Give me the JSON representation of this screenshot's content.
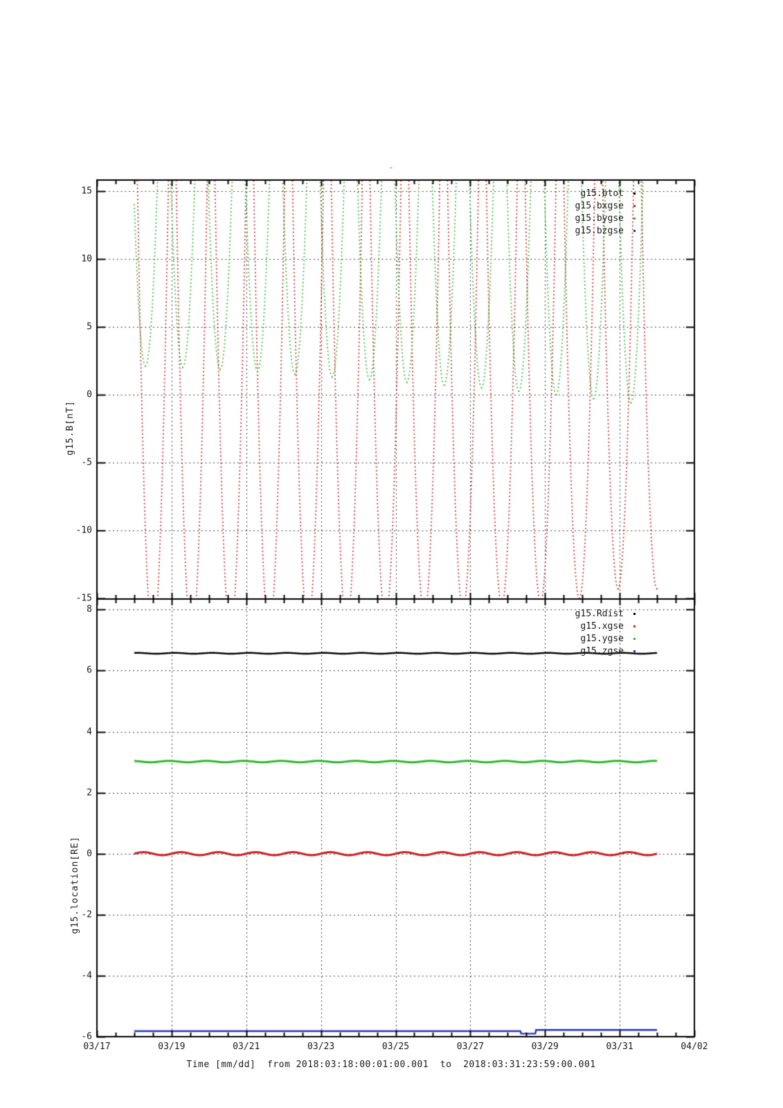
{
  "figure": {
    "title": "-",
    "bg_color": "#ffffff",
    "axis_color": "#000000",
    "text_color": "#1a1a1a"
  },
  "x_axis": {
    "title": "Time [mm/dd]  from 2018:03:18:00:01:00.001  to  2018:03:31:23:59:00.001",
    "tick_labels": [
      "03/17",
      "03/19",
      "03/21",
      "03/23",
      "03/25",
      "03/27",
      "03/29",
      "03/31",
      "04/02"
    ],
    "range_days_from_0317": [
      0,
      16
    ],
    "major_tick_every_days": 2,
    "minor_tick_every_days": 0.5,
    "grid": "dotted"
  },
  "panels": [
    {
      "id": "field",
      "ylabel": "g15.B[nT]",
      "ytick_labels": [
        "15",
        "10",
        "5",
        "0",
        "-5",
        "-10",
        "-15"
      ],
      "yticks": [
        15,
        10,
        5,
        0,
        -5,
        -10,
        -15
      ],
      "yrange": [
        -15.05,
        15.8
      ],
      "legend": [
        {
          "label": "g15.btot",
          "color": "#000000"
        },
        {
          "label": "g15.bxgse",
          "color": "#cc2222"
        },
        {
          "label": "g15.bygse",
          "color": "#2db82d"
        },
        {
          "label": "g15.bzgse",
          "color": "#2233bb"
        }
      ]
    },
    {
      "id": "location",
      "ylabel": "g15.location[RE]",
      "ytick_labels": [
        "8",
        "6",
        "4",
        "2",
        "0",
        "-2",
        "-4",
        "-6"
      ],
      "yticks": [
        8,
        6,
        4,
        2,
        0,
        -2,
        -4,
        -6
      ],
      "yrange": [
        -6,
        8.35
      ],
      "legend": [
        {
          "label": "g15.Rdist",
          "color": "#000000"
        },
        {
          "label": "g15.xgse",
          "color": "#cc2222"
        },
        {
          "label": "g15.ygse",
          "color": "#2db82d"
        },
        {
          "label": "g15.zgse",
          "color": "#2233bb"
        }
      ]
    }
  ],
  "chart_data": [
    {
      "type": "scatter",
      "title": "GOES-15 magnetic field in GSE, dotted daily V-shaped traces",
      "ylabel": "g15.B[nT]",
      "ylim": [
        -15.05,
        15.8
      ],
      "xlim_days_from_0317": [
        1,
        15
      ],
      "days": [
        "03/18",
        "03/19",
        "03/20",
        "03/21",
        "03/22",
        "03/23",
        "03/24",
        "03/25",
        "03/26",
        "03/27",
        "03/28",
        "03/29",
        "03/30",
        "03/31"
      ],
      "series": [
        {
          "name": "g15.btot",
          "color": "#000000",
          "style": "dots",
          "visible_in_range": false,
          "note": "off scale above +15 nT"
        },
        {
          "name": "g15.bxgse",
          "color": "#cc2222",
          "style": "dots",
          "daily_v": {
            "center_offset_day0": 0.5,
            "center_drift_per_day": 0.038,
            "apex_value": 16.5,
            "half_width_days": 0.42
          },
          "daily_min_nT": [
            -18.0,
            -18.0,
            -17.5,
            -17.5,
            -17.0,
            -17.0,
            -16.5,
            -16.2,
            -15.8,
            -15.5,
            -15.3,
            -15.0,
            -14.3,
            -14.3
          ]
        },
        {
          "name": "g15.bygse",
          "color": "#2db82d",
          "style": "dots",
          "daily_v": {
            "center_offset_day0": 0.3,
            "center_drift_per_day": 0.0,
            "apex_value": 16.5,
            "half_width_days": 0.33
          },
          "daily_min_nT": [
            2.1,
            2.0,
            1.85,
            1.7,
            1.5,
            1.3,
            1.1,
            0.9,
            0.7,
            0.5,
            0.25,
            0.0,
            -0.3,
            -0.6
          ]
        },
        {
          "name": "g15.bzgse",
          "color": "#2233bb",
          "style": "dots",
          "visible_in_range": false,
          "note": "off scale"
        }
      ]
    },
    {
      "type": "line",
      "title": "GOES-15 location in RE, nearly constant lines over 2018-03-18 to 2018-04-01",
      "ylabel": "g15.location[RE]",
      "ylim": [
        -6,
        8.35
      ],
      "xlim_days_from_0317": [
        1,
        15
      ],
      "series": [
        {
          "name": "g15.Rdist",
          "color": "#000000",
          "value_RE": 6.57,
          "wobble_amp": 0.015,
          "wobble_phase": 1.0,
          "width": 2.4
        },
        {
          "name": "g15.ygse",
          "color": "#2db82d",
          "value_RE": 3.02,
          "wobble_amp": 0.022,
          "wobble_phase": 2.0,
          "width": 3.0
        },
        {
          "name": "g15.xgse",
          "color": "#cc2222",
          "value_RE": 0.0,
          "wobble_amp": 0.05,
          "wobble_phase": 0.0,
          "width": 3.0
        },
        {
          "name": "g15.zgse",
          "color": "#2233bb",
          "value_RE": -5.82,
          "wobble_amp": 0.0,
          "wobble_phase": 0.0,
          "width": 2.4,
          "steps": [
            {
              "from_day": 11.35,
              "to_day": 11.75,
              "value_RE": -5.9
            },
            {
              "from_day": 11.75,
              "to_day": 15.0,
              "value_RE": -5.78
            }
          ]
        }
      ]
    }
  ]
}
